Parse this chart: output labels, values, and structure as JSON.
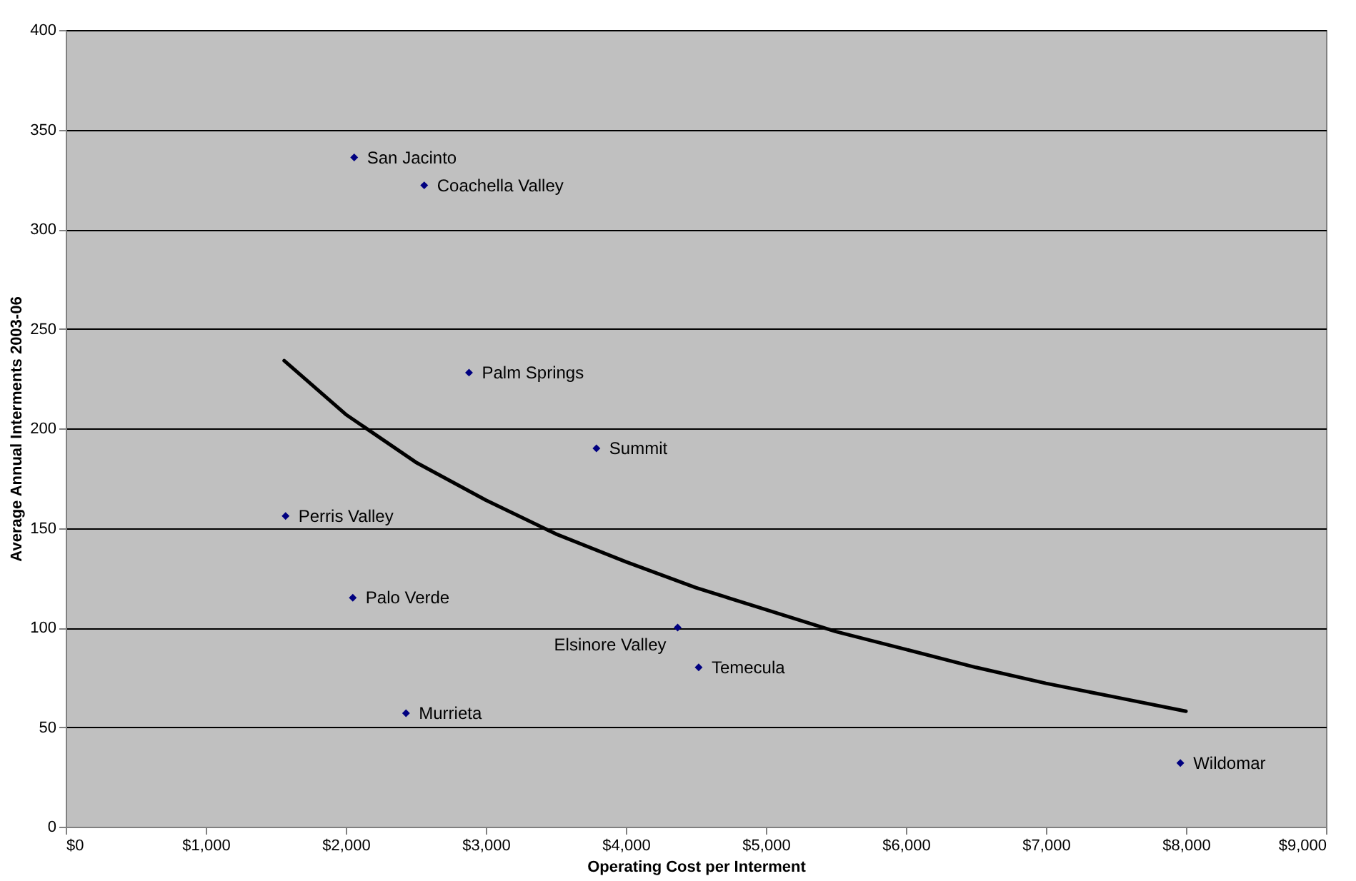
{
  "chart_data": {
    "type": "scatter",
    "xlabel": "Operating Cost per Interment",
    "ylabel": "Average Annual Interments 2003-06",
    "xlim": [
      0,
      9000
    ],
    "ylim": [
      0,
      400
    ],
    "xticks": [
      {
        "value": 0,
        "label": "$0"
      },
      {
        "value": 1000,
        "label": "$1,000"
      },
      {
        "value": 2000,
        "label": "$2,000"
      },
      {
        "value": 3000,
        "label": "$3,000"
      },
      {
        "value": 4000,
        "label": "$4,000"
      },
      {
        "value": 5000,
        "label": "$5,000"
      },
      {
        "value": 6000,
        "label": "$6,000"
      },
      {
        "value": 7000,
        "label": "$7,000"
      },
      {
        "value": 8000,
        "label": "$8,000"
      },
      {
        "value": 9000,
        "label": "$9,000"
      }
    ],
    "yticks": [
      0,
      50,
      100,
      150,
      200,
      250,
      300,
      350,
      400
    ],
    "grid": "y",
    "marker": "diamond",
    "series": [
      {
        "color": "#000080",
        "x": [
          2060,
          2560,
          2880,
          3790,
          1570,
          2050,
          4370,
          4520,
          2430,
          7960
        ],
        "values": [
          336,
          322,
          228,
          190,
          156,
          115,
          100,
          80,
          57,
          32
        ]
      },
      {
        "type": "line",
        "color": "#000000",
        "line_style": "solid",
        "marker": "none",
        "x": [
          1560,
          2000,
          2500,
          3000,
          3500,
          4000,
          4500,
          5000,
          5500,
          6000,
          6500,
          7000,
          7500,
          8000
        ],
        "values": [
          234,
          207,
          183,
          164,
          147,
          133,
          120,
          109,
          98,
          89,
          80,
          72,
          65,
          58
        ]
      }
    ],
    "annotations": [
      {
        "text": "San Jacinto",
        "x": 2060,
        "y": 336
      },
      {
        "text": "Coachella Valley",
        "x": 2560,
        "y": 322
      },
      {
        "text": "Palm Springs",
        "x": 2880,
        "y": 228
      },
      {
        "text": "Summit",
        "x": 3790,
        "y": 190
      },
      {
        "text": "Perris Valley",
        "x": 1570,
        "y": 156
      },
      {
        "text": "Palo Verde",
        "x": 2050,
        "y": 115
      },
      {
        "text": "Elsinore Valley",
        "x": 4370,
        "y": 100
      },
      {
        "text": "Temecula",
        "x": 4520,
        "y": 80
      },
      {
        "text": "Murrieta",
        "x": 2430,
        "y": 57
      },
      {
        "text": "Wildomar",
        "x": 7960,
        "y": 32
      }
    ]
  }
}
